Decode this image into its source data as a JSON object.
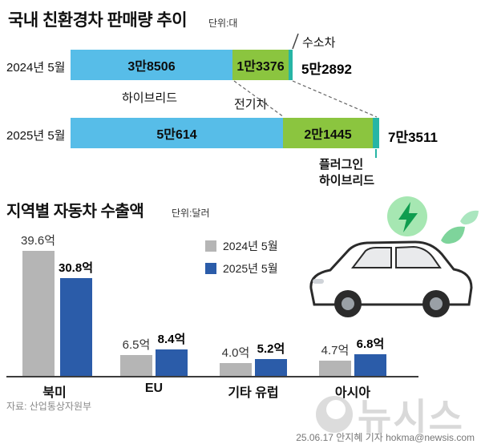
{
  "sales_chart": {
    "title": "국내 친환경차 판매량 추이",
    "unit": "단위:대",
    "rows": [
      {
        "label": "2024년 5월",
        "hybrid": 38506,
        "ev": 13376,
        "other": 1010,
        "total": 52892,
        "hybrid_label": "3만8506",
        "ev_label": "1만3376",
        "total_label": "5만2892"
      },
      {
        "label": "2025년 5월",
        "hybrid": 50614,
        "ev": 21445,
        "other": 1452,
        "total": 73511,
        "hybrid_label": "5만614",
        "ev_label": "2만1445",
        "total_label": "7만3511"
      }
    ],
    "annotations": {
      "hybrid": "하이브리드",
      "ev": "전기차",
      "hydrogen": "수소차",
      "phev_line1": "플러그인",
      "phev_line2": "하이브리드"
    },
    "colors": {
      "hybrid": "#57bde8",
      "ev": "#8bc53f",
      "other": "#27b5a5"
    }
  },
  "export_chart": {
    "title": "지역별 자동차 수출액",
    "unit": "단위:달러",
    "legend": [
      {
        "label": "2024년 5월",
        "color": "#b5b5b5"
      },
      {
        "label": "2025년 5월",
        "color": "#2b5ca9"
      }
    ],
    "categories": [
      "북미",
      "EU",
      "기타 유럽",
      "아시아"
    ],
    "series": [
      {
        "name": "2024년 5월",
        "values": [
          39.6,
          6.5,
          4.0,
          4.7
        ],
        "labels": [
          "39.6억",
          "6.5억",
          "4.0억",
          "4.7억"
        ]
      },
      {
        "name": "2025년 5월",
        "values": [
          30.8,
          8.4,
          5.2,
          6.8
        ],
        "labels": [
          "30.8억",
          "8.4억",
          "5.2억",
          "6.8억"
        ]
      }
    ]
  },
  "footer": {
    "source": "자료: 산업통상자원부",
    "watermark": "뉴시스",
    "credit": "25.06.17 안지혜 기자 hokma@newsis.com"
  },
  "chart_data": [
    {
      "type": "bar",
      "orientation": "horizontal",
      "stacked": true,
      "title": "국내 친환경차 판매량 추이",
      "unit": "대",
      "categories": [
        "2024년 5월",
        "2025년 5월"
      ],
      "series": [
        {
          "name": "하이브리드",
          "values": [
            38506,
            50614
          ]
        },
        {
          "name": "전기차",
          "values": [
            13376,
            21445
          ]
        },
        {
          "name": "플러그인 하이브리드·수소차",
          "values": [
            1010,
            1452
          ]
        }
      ],
      "totals": [
        52892,
        73511
      ],
      "legend_position": "callout-annotations"
    },
    {
      "type": "bar",
      "title": "지역별 자동차 수출액",
      "unit": "달러(억)",
      "categories": [
        "북미",
        "EU",
        "기타 유럽",
        "아시아"
      ],
      "series": [
        {
          "name": "2024년 5월",
          "values": [
            39.6,
            6.5,
            4.0,
            4.7
          ]
        },
        {
          "name": "2025년 5월",
          "values": [
            30.8,
            8.4,
            5.2,
            6.8
          ]
        }
      ],
      "value_suffix": "억",
      "grid": false,
      "legend_position": "top-center"
    }
  ]
}
